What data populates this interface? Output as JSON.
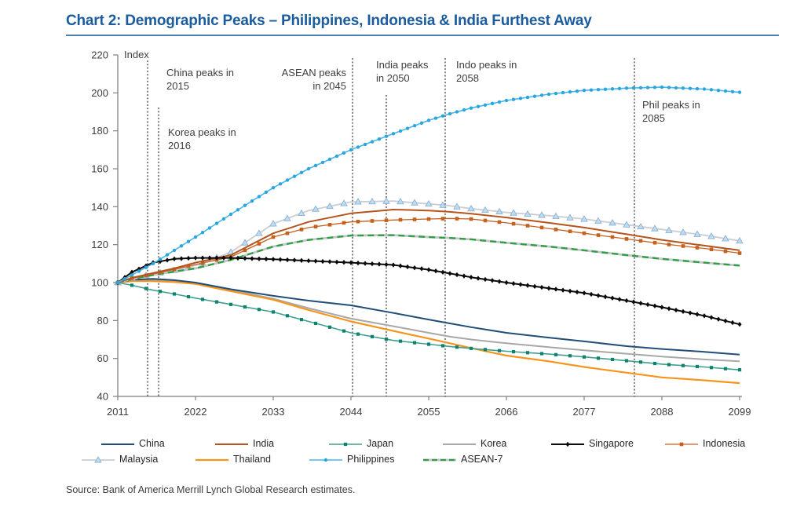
{
  "title": "Chart 2: Demographic Peaks – Philippines, Indonesia & India Furthest Away",
  "source": "Source: Bank of America Merrill Lynch Global Research estimates.",
  "chart_data": {
    "type": "line",
    "title": "Chart 2: Demographic Peaks – Philippines, Indonesia & India Furthest Away",
    "xlabel": "",
    "ylabel": "Index",
    "ylim": [
      40,
      220
    ],
    "ytick_step": 20,
    "xticks": [
      2011,
      2022,
      2033,
      2044,
      2055,
      2066,
      2077,
      2088,
      2099
    ],
    "grid": false,
    "legend_position": "bottom",
    "x": [
      2011,
      2013,
      2016,
      2019,
      2022,
      2027,
      2033,
      2038,
      2044,
      2050,
      2055,
      2058,
      2061,
      2066,
      2072,
      2077,
      2083,
      2088,
      2094,
      2099
    ],
    "series": [
      {
        "name": "China",
        "color": "#1F4E79",
        "width": 2,
        "marker": null,
        "values": [
          100,
          101.5,
          102,
          101.3,
          100,
          96.5,
          93,
          90.5,
          88,
          84,
          80.5,
          78.5,
          76.5,
          73.5,
          71,
          69,
          66.5,
          65,
          63.5,
          62
        ]
      },
      {
        "name": "India",
        "color": "#B5541C",
        "width": 2,
        "marker": null,
        "values": [
          100,
          102.5,
          105,
          107.5,
          110.5,
          114.5,
          126,
          132,
          136.5,
          138.5,
          138,
          137.3,
          136.3,
          134.3,
          131.5,
          129,
          125.5,
          122.5,
          119.5,
          117
        ]
      },
      {
        "name": "Japan",
        "color": "#3FA08E",
        "width": 1.6,
        "marker": {
          "shape": "square",
          "fill": "#0E8170",
          "every": 2,
          "size": 4.2
        },
        "values": [
          100,
          98.6,
          96,
          94,
          91.8,
          88.5,
          84.5,
          79.5,
          73.5,
          69.5,
          67.5,
          66.3,
          65.3,
          63.8,
          62.3,
          60.8,
          58.8,
          57,
          55.5,
          54
        ]
      },
      {
        "name": "Korea",
        "color": "#A8A8A8",
        "width": 2,
        "marker": null,
        "values": [
          100,
          100.8,
          101.5,
          100.8,
          99.5,
          96,
          91.5,
          86.5,
          81,
          77,
          73.5,
          71.5,
          70,
          68,
          66,
          64.3,
          62.5,
          61,
          59.5,
          58.5
        ]
      },
      {
        "name": "Singapore",
        "color": "#0A0A0A",
        "width": 2,
        "marker": {
          "shape": "diamond",
          "fill": "#0A0A0A",
          "every": 1,
          "size": 5.2
        },
        "values": [
          100,
          105.5,
          110.5,
          112.5,
          113,
          113,
          112.3,
          111.5,
          110.5,
          109.3,
          106.8,
          104.8,
          102.8,
          100,
          97,
          94.5,
          90.5,
          87,
          82.5,
          78
        ]
      },
      {
        "name": "Indonesia",
        "color": "#C4611F",
        "width": 1.3,
        "marker": {
          "shape": "square",
          "fill": "#C4611F",
          "every": 2,
          "size": 4.6
        },
        "values": [
          100,
          102.3,
          104.5,
          107,
          109.5,
          113.5,
          124,
          129,
          132,
          133,
          133.5,
          133.8,
          133.5,
          131.5,
          128.5,
          126,
          123,
          120.5,
          118,
          115.5
        ]
      },
      {
        "name": "Malaysia",
        "color": "#C9CED4",
        "width": 1.8,
        "marker": {
          "shape": "triangle",
          "fill": "#BFDCF0",
          "stroke": "#8AB2D4",
          "every": 2,
          "size": 8
        },
        "values": [
          100,
          102.5,
          104.5,
          106.5,
          109,
          116,
          131,
          138,
          142.5,
          143,
          141.5,
          140.5,
          139,
          137,
          135.3,
          133.5,
          130.5,
          128,
          125,
          122
        ]
      },
      {
        "name": "Thailand",
        "color": "#F7941E",
        "width": 2.2,
        "marker": null,
        "values": [
          100,
          100.8,
          100.8,
          100.3,
          99.3,
          95.5,
          91,
          85.5,
          79.5,
          74.5,
          70.5,
          68,
          65.5,
          61.5,
          58.5,
          55.5,
          52.5,
          50,
          48.5,
          47
        ]
      },
      {
        "name": "Philippines",
        "color": "#4AB5E8",
        "width": 1.6,
        "marker": {
          "shape": "circle",
          "fill": "#29A5DF",
          "every": 1,
          "size": 4.4
        },
        "values": [
          100,
          104,
          110,
          117,
          124,
          136,
          150,
          160,
          170,
          178.5,
          185.5,
          189,
          192,
          196,
          199.3,
          201.3,
          202.5,
          203,
          202,
          200.3
        ]
      },
      {
        "name": "ASEAN-7",
        "color": "#2E9E40",
        "width": 2.3,
        "dash": "8 5",
        "underlay": "#C4C8CC",
        "marker": null,
        "values": [
          100,
          102,
          104,
          105.8,
          107.5,
          112,
          119,
          122.5,
          124.8,
          125,
          124,
          123.5,
          122.8,
          121,
          119,
          117,
          114.5,
          112.5,
          110.5,
          109
        ]
      }
    ],
    "annotations": [
      {
        "year": 2015,
        "label": "China peaks in 2015",
        "line1": "China peaks in",
        "line2": "2015"
      },
      {
        "year": 2016,
        "label": "Korea peaks in 2016",
        "line1": "Korea peaks in",
        "line2": "2016"
      },
      {
        "year": 2045,
        "label": "ASEAN peaks in 2045",
        "line1": "ASEAN peaks",
        "line2": "in 2045"
      },
      {
        "year": 2050,
        "label": "India peaks in 2050",
        "line1": "India peaks",
        "line2": "in 2050"
      },
      {
        "year": 2058,
        "label": "Indo peaks in 2058",
        "line1": "Indo peaks in",
        "line2": "2058"
      },
      {
        "year": 2085,
        "label": "Phil peaks in 2085",
        "line1": "Phil peaks in",
        "line2": "2085"
      }
    ]
  }
}
